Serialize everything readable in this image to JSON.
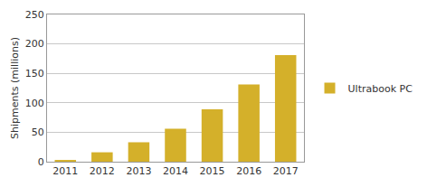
{
  "chart_data": {
    "type": "bar",
    "y_label": "Shipments (millions)",
    "categories": [
      "2011",
      "2012",
      "2013",
      "2014",
      "2015",
      "2016",
      "2017"
    ],
    "series": [
      {
        "name": "Ultrabook PC",
        "color": "#d4b02a",
        "values": [
          3,
          16,
          33,
          56,
          89,
          131,
          181
        ]
      }
    ],
    "ylim": [
      0,
      250
    ],
    "yticks": [
      0,
      50,
      100,
      150,
      200,
      250
    ],
    "grid": true,
    "legend": "right"
  }
}
